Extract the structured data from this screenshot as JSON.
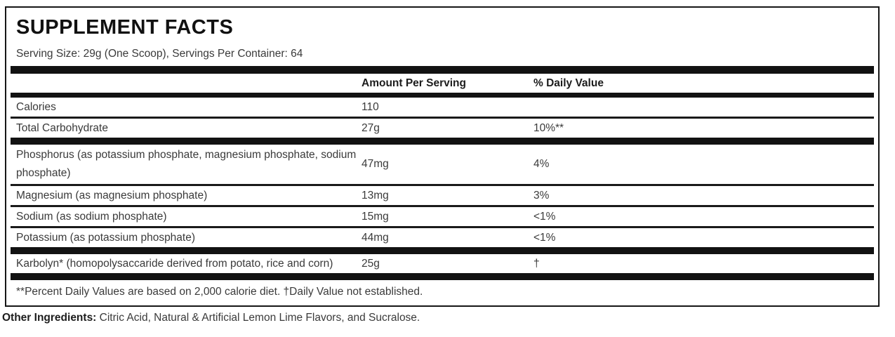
{
  "panel": {
    "title": "SUPPLEMENT FACTS",
    "serving_info": "Serving Size: 29g (One Scoop), Servings Per Container: 64",
    "columns": {
      "amount": "Amount Per Serving",
      "daily_value": "% Daily Value"
    },
    "rows": [
      {
        "label": "Calories",
        "amount": "110",
        "dv": ""
      },
      {
        "label": "Total Carbohydrate",
        "amount": "27g",
        "dv": "10%**"
      },
      {
        "label": "Phosphorus (as potassium phosphate, magnesium phosphate, sodium phosphate)",
        "amount": "47mg",
        "dv": "4%"
      },
      {
        "label": "Magnesium (as magnesium phosphate)",
        "amount": "13mg",
        "dv": "3%"
      },
      {
        "label": "Sodium (as sodium phosphate)",
        "amount": "15mg",
        "dv": "<1%"
      },
      {
        "label": "Potassium (as potassium phosphate)",
        "amount": "44mg",
        "dv": "<1%"
      },
      {
        "label": "Karbolyn* (homopolysaccaride derived from potato, rice and corn)",
        "amount": "25g",
        "dv": "†"
      }
    ],
    "footnote": "**Percent Daily Values are based on 2,000 calorie diet. †Daily Value not established.",
    "other_ingredients": {
      "label": "Other Ingredients:",
      "text": " Citric Acid, Natural & Artificial Lemon Lime Flavors, and Sucralose."
    }
  },
  "colors": {
    "bar": "#121212",
    "text": "#3a3a3a",
    "title": "#111111"
  }
}
